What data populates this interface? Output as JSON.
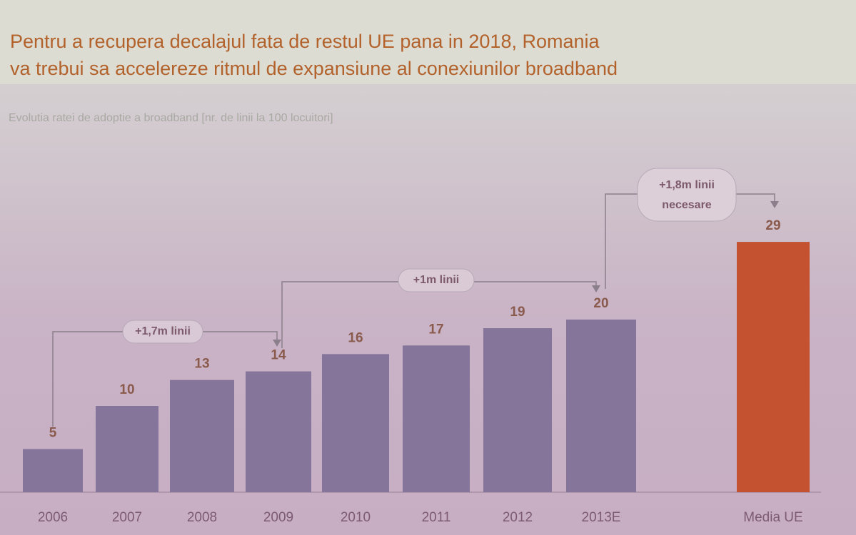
{
  "chart_data": {
    "type": "bar",
    "title": [
      "Pentru a recupera decalajul fata de restul UE pana in 2018, Romania",
      "va trebui sa accelereze ritmul de expansiune al conexiunilor broadband"
    ],
    "subtitle": "Evolutia ratei de adoptie a broadband [nr. de linii la 100 locuitori]",
    "categories": [
      "2006",
      "2007",
      "2008",
      "2009",
      "2010",
      "2011",
      "2012",
      "2013E",
      "Media UE"
    ],
    "values": [
      5,
      10,
      13,
      14,
      16,
      17,
      19,
      20,
      29
    ],
    "colors": [
      "#85759a",
      "#85759a",
      "#85759a",
      "#85759a",
      "#85759a",
      "#85759a",
      "#85759a",
      "#85759a",
      "#c4512f"
    ],
    "annotations": [
      [
        "+1,7m linii"
      ],
      [
        "+1m linii"
      ],
      [
        "+1,8m linii",
        "necesare"
      ]
    ]
  }
}
